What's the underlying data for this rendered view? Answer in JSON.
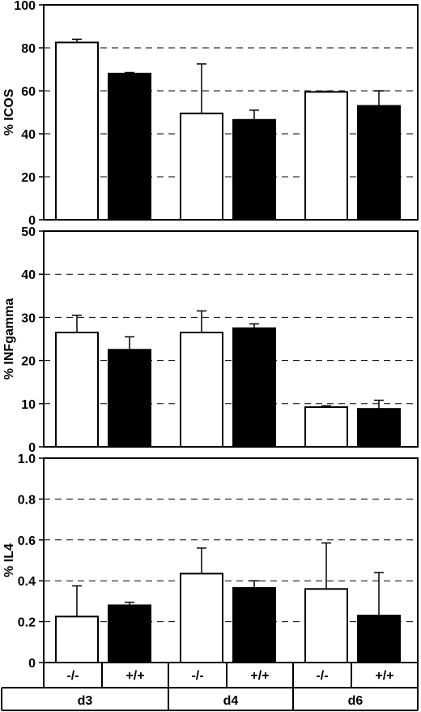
{
  "chart_data": [
    {
      "type": "bar",
      "ylabel": "% ICOS",
      "ylim": [
        0,
        100
      ],
      "yticks": [
        "0",
        "20",
        "40",
        "60",
        "80",
        "100"
      ],
      "grid": "dashed horizontal",
      "categories": [
        "d3",
        "d4",
        "d6"
      ],
      "series": [
        {
          "name": "-/-",
          "color": "#ffffff",
          "values": [
            82.5,
            49.5,
            59.5
          ],
          "errors": [
            1.5,
            23,
            0.3
          ]
        },
        {
          "name": "+/+",
          "color": "#000000",
          "values": [
            68,
            46.5,
            53
          ],
          "errors": [
            0.5,
            4.5,
            7
          ]
        }
      ]
    },
    {
      "type": "bar",
      "ylabel": "% INFgamma",
      "ylim": [
        0,
        50
      ],
      "yticks": [
        "0",
        "10",
        "20",
        "30",
        "40",
        "50"
      ],
      "grid": "dashed horizontal",
      "categories": [
        "d3",
        "d4",
        "d6"
      ],
      "series": [
        {
          "name": "-/-",
          "color": "#ffffff",
          "values": [
            26.5,
            26.5,
            9.2
          ],
          "errors": [
            4,
            5,
            0.3
          ]
        },
        {
          "name": "+/+",
          "color": "#000000",
          "values": [
            22.5,
            27.5,
            8.8
          ],
          "errors": [
            3,
            1,
            2
          ]
        }
      ]
    },
    {
      "type": "bar",
      "ylabel": "% IL4",
      "ylim": [
        0,
        1.0
      ],
      "yticks": [
        "0",
        "0.2",
        "0.4",
        "0.6",
        "0.8",
        "1.0"
      ],
      "grid": "dashed horizontal",
      "categories": [
        "d3",
        "d4",
        "d6"
      ],
      "series": [
        {
          "name": "-/-",
          "color": "#ffffff",
          "values": [
            0.225,
            0.435,
            0.36
          ],
          "errors": [
            0.15,
            0.125,
            0.225
          ]
        },
        {
          "name": "+/+",
          "color": "#000000",
          "values": [
            0.28,
            0.365,
            0.23
          ],
          "errors": [
            0.015,
            0.035,
            0.21
          ]
        }
      ]
    }
  ],
  "x_table": {
    "genotype_row": [
      "-/-",
      "+/+",
      "-/-",
      "+/+",
      "-/-",
      "+/+"
    ],
    "day_row": [
      "d3",
      "d4",
      "d6"
    ]
  }
}
